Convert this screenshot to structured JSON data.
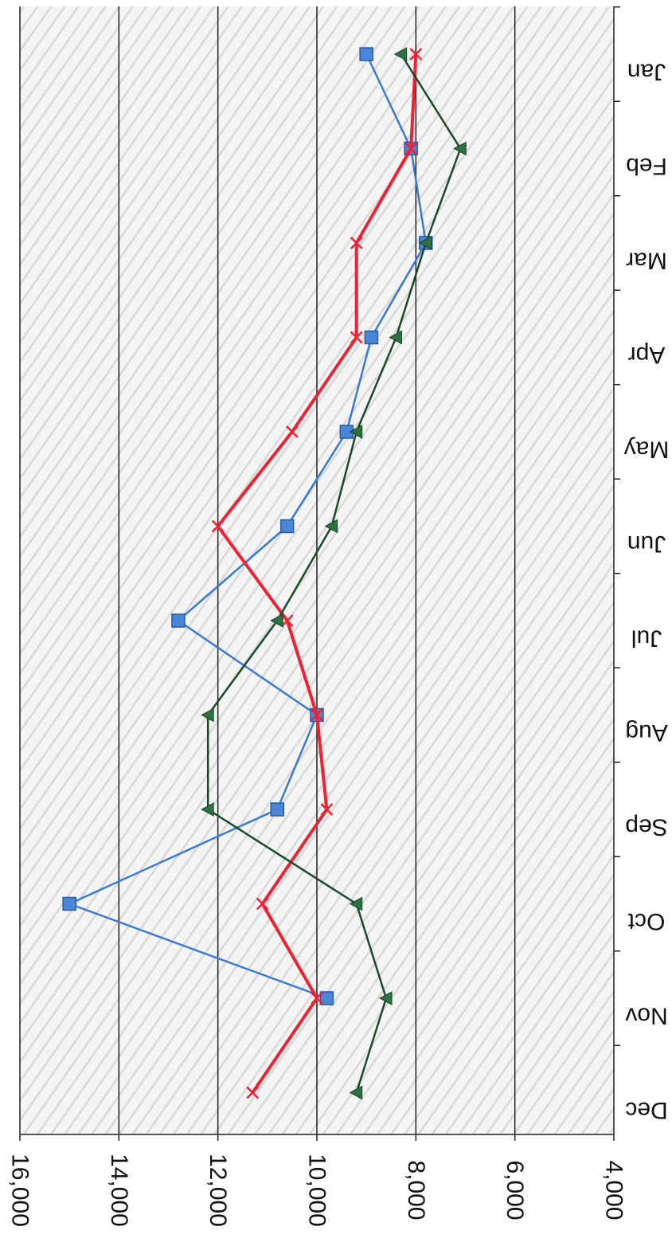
{
  "chart_data": {
    "type": "line",
    "orientation": "rotated-90-clockwise",
    "categories": [
      "Jan",
      "Feb",
      "Mar",
      "Apr",
      "May",
      "Jun",
      "Jul",
      "Aug",
      "Sep",
      "Oct",
      "Nov",
      "Dec"
    ],
    "yticks": [
      "4,000",
      "6,000",
      "8,000",
      "10,000",
      "12,000",
      "14,000",
      "16,000"
    ],
    "ylim": [
      4000,
      16000
    ],
    "grid": true,
    "legend": "none",
    "series": [
      {
        "marker": "square",
        "color": "#3a7ad0",
        "values": [
          9000,
          8100,
          7800,
          8900,
          9400,
          10600,
          12800,
          10000,
          10800,
          15000,
          9800,
          null
        ]
      },
      {
        "marker": "x",
        "color": "#ee2233",
        "values": [
          8000,
          8100,
          9200,
          9200,
          10500,
          12000,
          10600,
          10000,
          9800,
          11100,
          10000,
          11300
        ]
      },
      {
        "marker": "triangle",
        "color": "#1a4a2a",
        "values": [
          8300,
          7100,
          7800,
          8400,
          9200,
          9700,
          10800,
          12200,
          12200,
          9200,
          8600,
          9200
        ]
      }
    ]
  }
}
